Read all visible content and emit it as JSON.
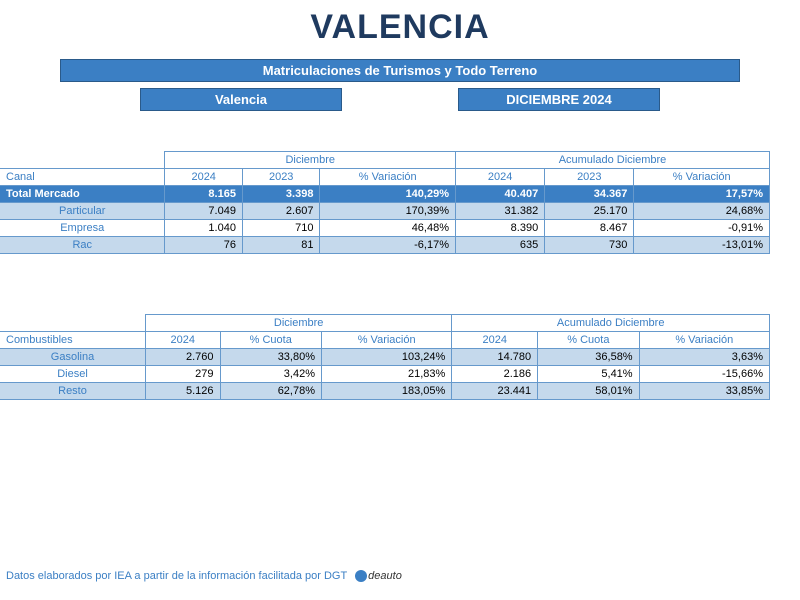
{
  "title": "VALENCIA",
  "header": {
    "full": "Matriculaciones de Turismos y Todo Terreno",
    "left": "Valencia",
    "right": "DICIEMBRE 2024"
  },
  "colors": {
    "brand": "#3b7fc4",
    "brand_dark": "#1f3a5f",
    "border": "#6699cc",
    "alt_row": "#c5d9ec",
    "text_blue": "#3b7fc4"
  },
  "table1": {
    "row_header": "Canal",
    "group_headers": [
      "Diciembre",
      "Acumulado Diciembre"
    ],
    "sub_headers": [
      "2024",
      "2023",
      "% Variación",
      "2024",
      "2023",
      "% Variación"
    ],
    "total": {
      "label": "Total Mercado",
      "cells": [
        "8.165",
        "3.398",
        "140,29%",
        "40.407",
        "34.367",
        "17,57%"
      ]
    },
    "rows": [
      {
        "label": "Particular",
        "alt": true,
        "cells": [
          "7.049",
          "2.607",
          "170,39%",
          "31.382",
          "25.170",
          "24,68%"
        ]
      },
      {
        "label": "Empresa",
        "alt": false,
        "cells": [
          "1.040",
          "710",
          "46,48%",
          "8.390",
          "8.467",
          "-0,91%"
        ]
      },
      {
        "label": "Rac",
        "alt": true,
        "cells": [
          "76",
          "81",
          "-6,17%",
          "635",
          "730",
          "-13,01%"
        ]
      }
    ]
  },
  "table2": {
    "row_header": "Combustibles",
    "group_headers": [
      "Diciembre",
      "Acumulado Diciembre"
    ],
    "sub_headers": [
      "2024",
      "% Cuota",
      "% Variación",
      "2024",
      "% Cuota",
      "% Variación"
    ],
    "rows": [
      {
        "label": "Gasolina",
        "alt": true,
        "cells": [
          "2.760",
          "33,80%",
          "103,24%",
          "14.780",
          "36,58%",
          "3,63%"
        ]
      },
      {
        "label": "Diesel",
        "alt": false,
        "cells": [
          "279",
          "3,42%",
          "21,83%",
          "2.186",
          "5,41%",
          "-15,66%"
        ]
      },
      {
        "label": "Resto",
        "alt": true,
        "cells": [
          "5.126",
          "62,78%",
          "183,05%",
          "23.441",
          "58,01%",
          "33,85%"
        ]
      }
    ]
  },
  "footer": {
    "text": "Datos elaborados por IEA a partir de la información facilitada por DGT",
    "logo_text": "deauto"
  }
}
